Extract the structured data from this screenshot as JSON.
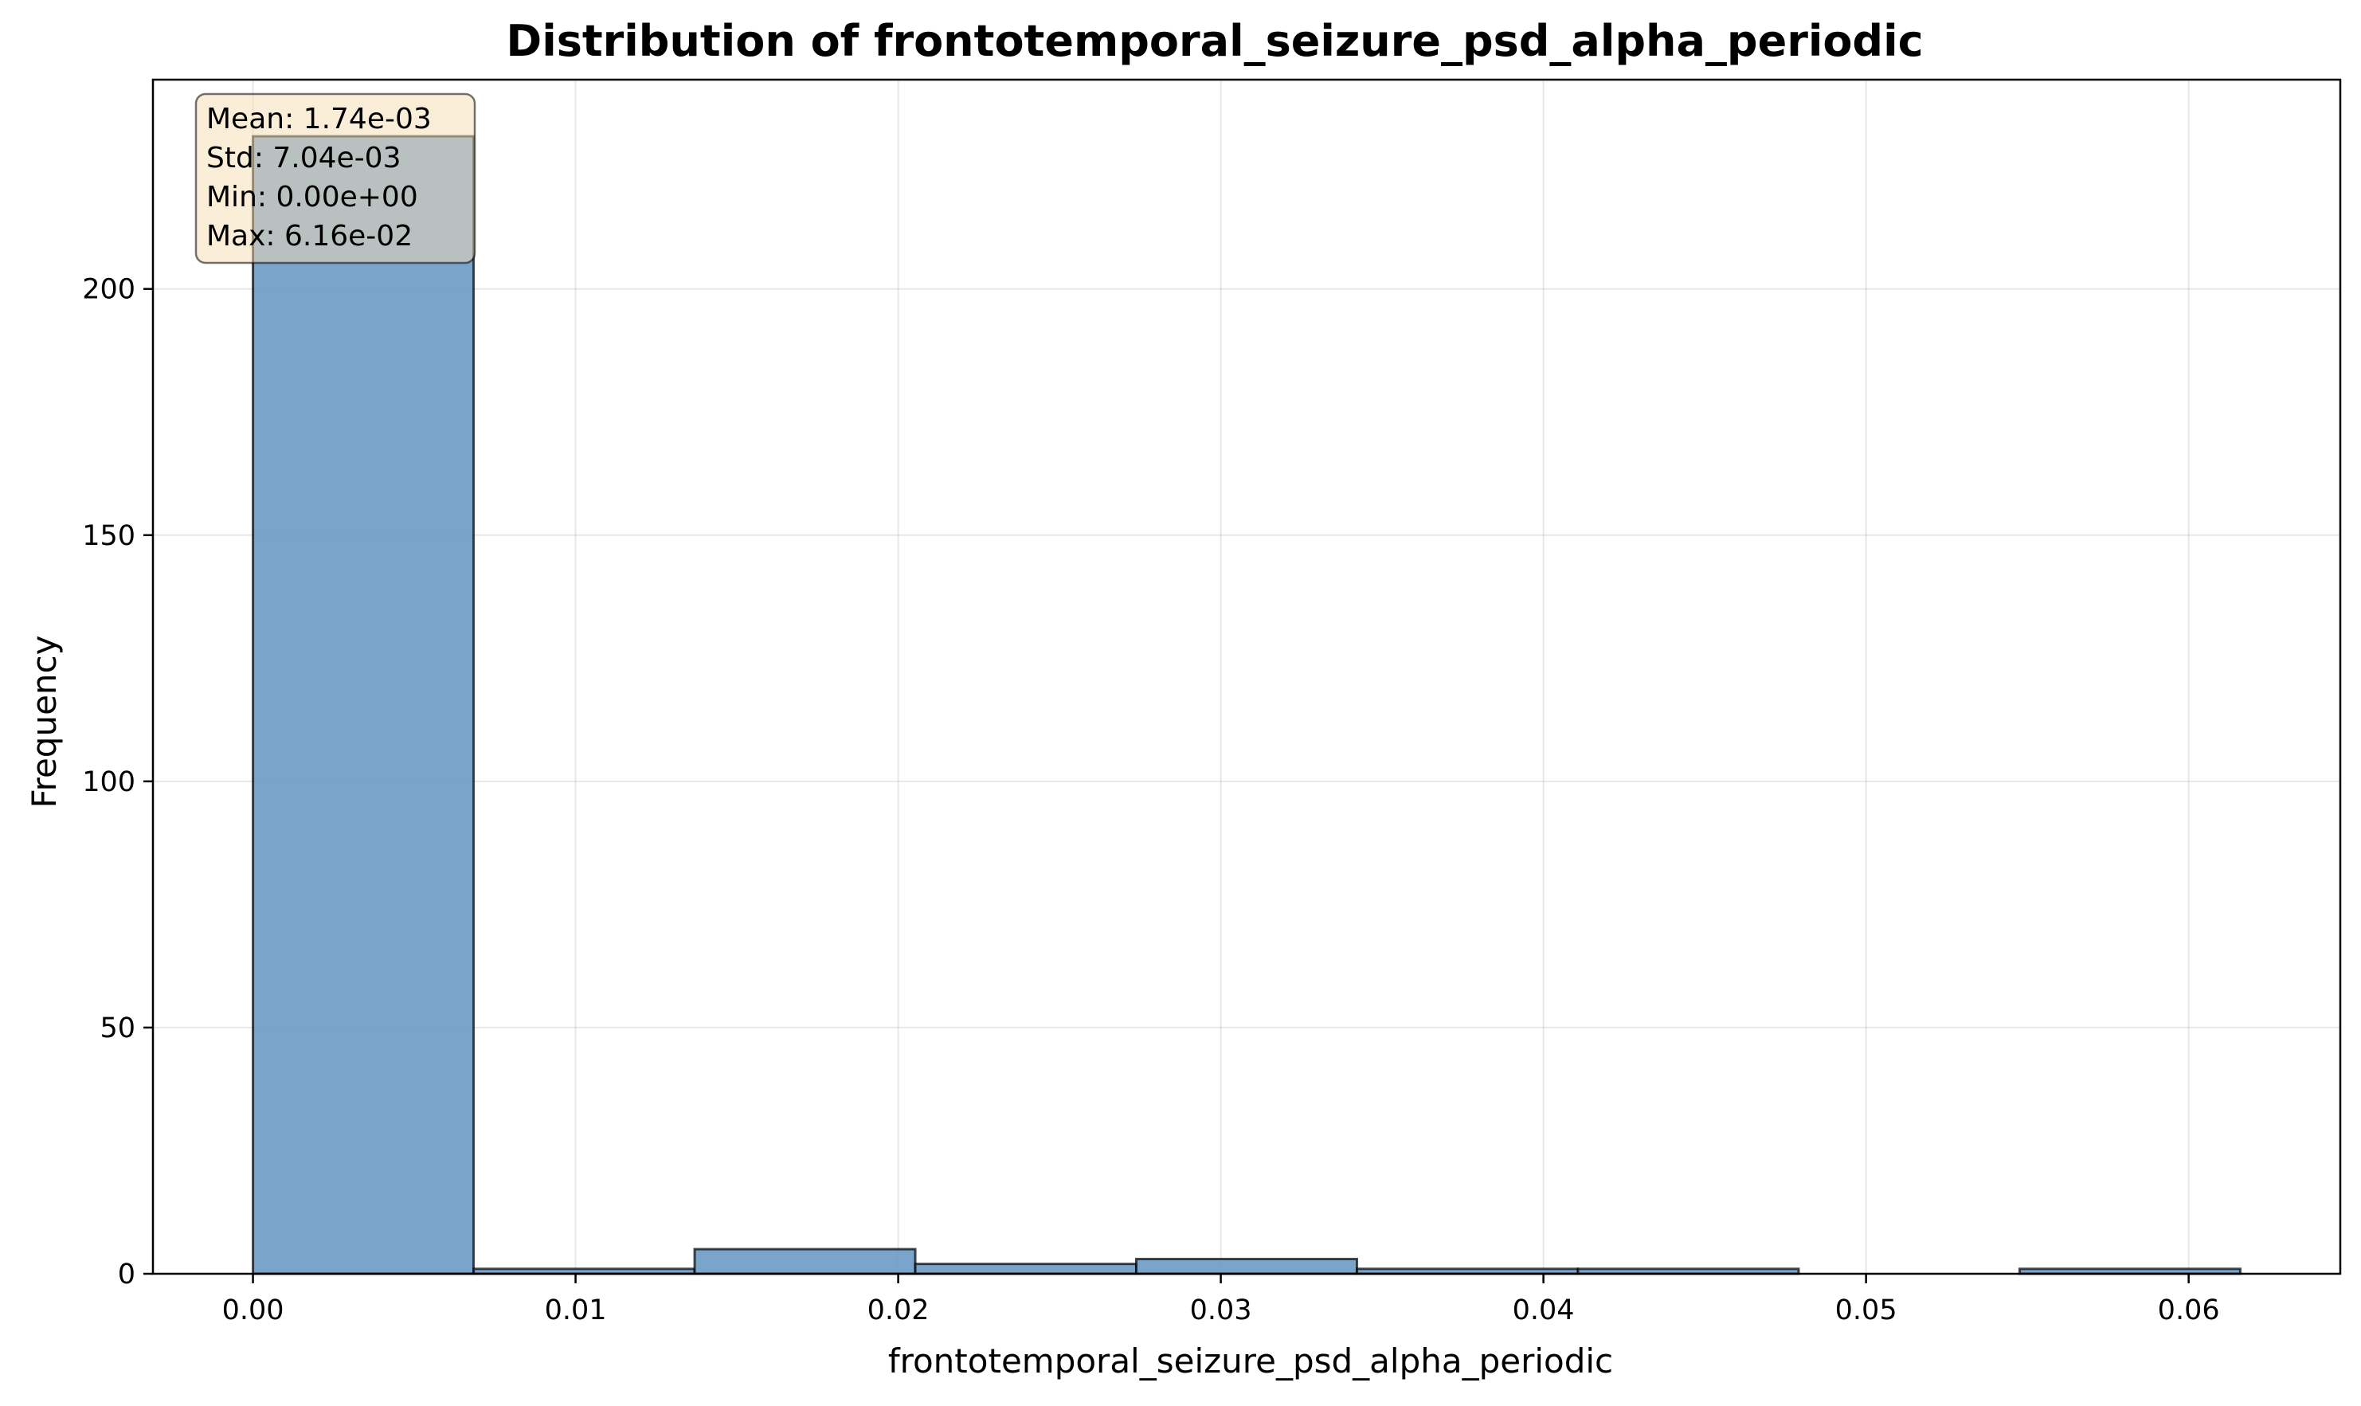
{
  "chart_data": {
    "type": "histogram",
    "title": "Distribution of frontotemporal_seizure_psd_alpha_periodic",
    "xlabel": "frontotemporal_seizure_psd_alpha_periodic",
    "ylabel": "Frequency",
    "xlim": [
      -0.0031,
      0.0647
    ],
    "ylim": [
      0,
      242.5
    ],
    "xticks": [
      0.0,
      0.01,
      0.02,
      0.03,
      0.04,
      0.05,
      0.06
    ],
    "xtick_labels": [
      "0.00",
      "0.01",
      "0.02",
      "0.03",
      "0.04",
      "0.05",
      "0.06"
    ],
    "yticks": [
      0,
      50,
      100,
      150,
      200
    ],
    "ytick_labels": [
      "0",
      "50",
      "100",
      "150",
      "200"
    ],
    "grid": true,
    "bin_edges": [
      0.0,
      0.00684,
      0.01369,
      0.02053,
      0.02738,
      0.03422,
      0.04107,
      0.04791,
      0.05476,
      0.0616
    ],
    "counts": [
      231,
      1,
      5,
      2,
      3,
      1,
      1,
      0,
      1
    ],
    "bar_color": "#6c9ac4",
    "bar_edge_color": "#000000",
    "stats": {
      "mean": "Mean: 1.74e-03",
      "std": "Std: 7.04e-03",
      "min": "Min: 0.00e+00",
      "max": "Max: 6.16e-02"
    },
    "stats_box_color": "#f5deb3",
    "stats_position": "top-left"
  }
}
